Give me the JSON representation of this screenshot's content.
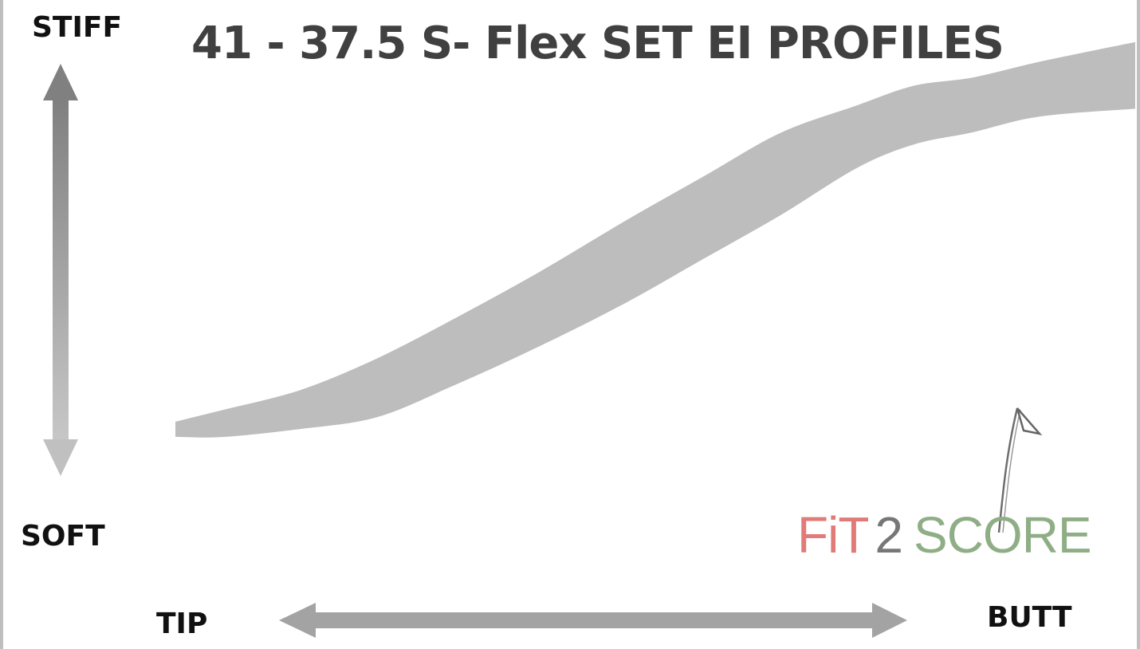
{
  "title": "41 - 37.5 S- Flex SET EI PROFILES",
  "labels": {
    "stiff": "STIFF",
    "soft": "SOFT",
    "tip": "TIP",
    "butt": "BUTT"
  },
  "logo": {
    "fit": "FiT",
    "two": "2",
    "score": "SCORE"
  },
  "colors": {
    "band": "#bdbdbd",
    "arrow": "#9e9e9e",
    "title": "#404040",
    "logo_fit": "#e07b78",
    "logo_two": "#777777",
    "logo_score": "#8fae86"
  },
  "chart_data": {
    "type": "area",
    "title": "41 - 37.5 S- Flex SET EI PROFILES",
    "xlabel": "",
    "ylabel": "",
    "x_direction": [
      "TIP",
      "BUTT"
    ],
    "y_direction": [
      "SOFT",
      "STIFF"
    ],
    "xlim": [
      0,
      1
    ],
    "ylim": [
      0,
      1
    ],
    "grid": false,
    "legend": "none",
    "series": [
      {
        "name": "",
        "x": [
          0.0,
          0.05,
          0.13,
          0.21,
          0.29,
          0.38,
          0.47,
          0.55,
          0.63,
          0.71,
          0.77,
          0.83,
          0.9,
          1.0
        ],
        "upper": [
          0.04,
          0.07,
          0.12,
          0.2,
          0.3,
          0.42,
          0.55,
          0.66,
          0.77,
          0.84,
          0.89,
          0.91,
          0.95,
          1.0
        ],
        "lower": [
          0.0,
          0.0,
          0.02,
          0.05,
          0.13,
          0.23,
          0.34,
          0.45,
          0.56,
          0.68,
          0.74,
          0.77,
          0.81,
          0.83
        ]
      }
    ]
  }
}
